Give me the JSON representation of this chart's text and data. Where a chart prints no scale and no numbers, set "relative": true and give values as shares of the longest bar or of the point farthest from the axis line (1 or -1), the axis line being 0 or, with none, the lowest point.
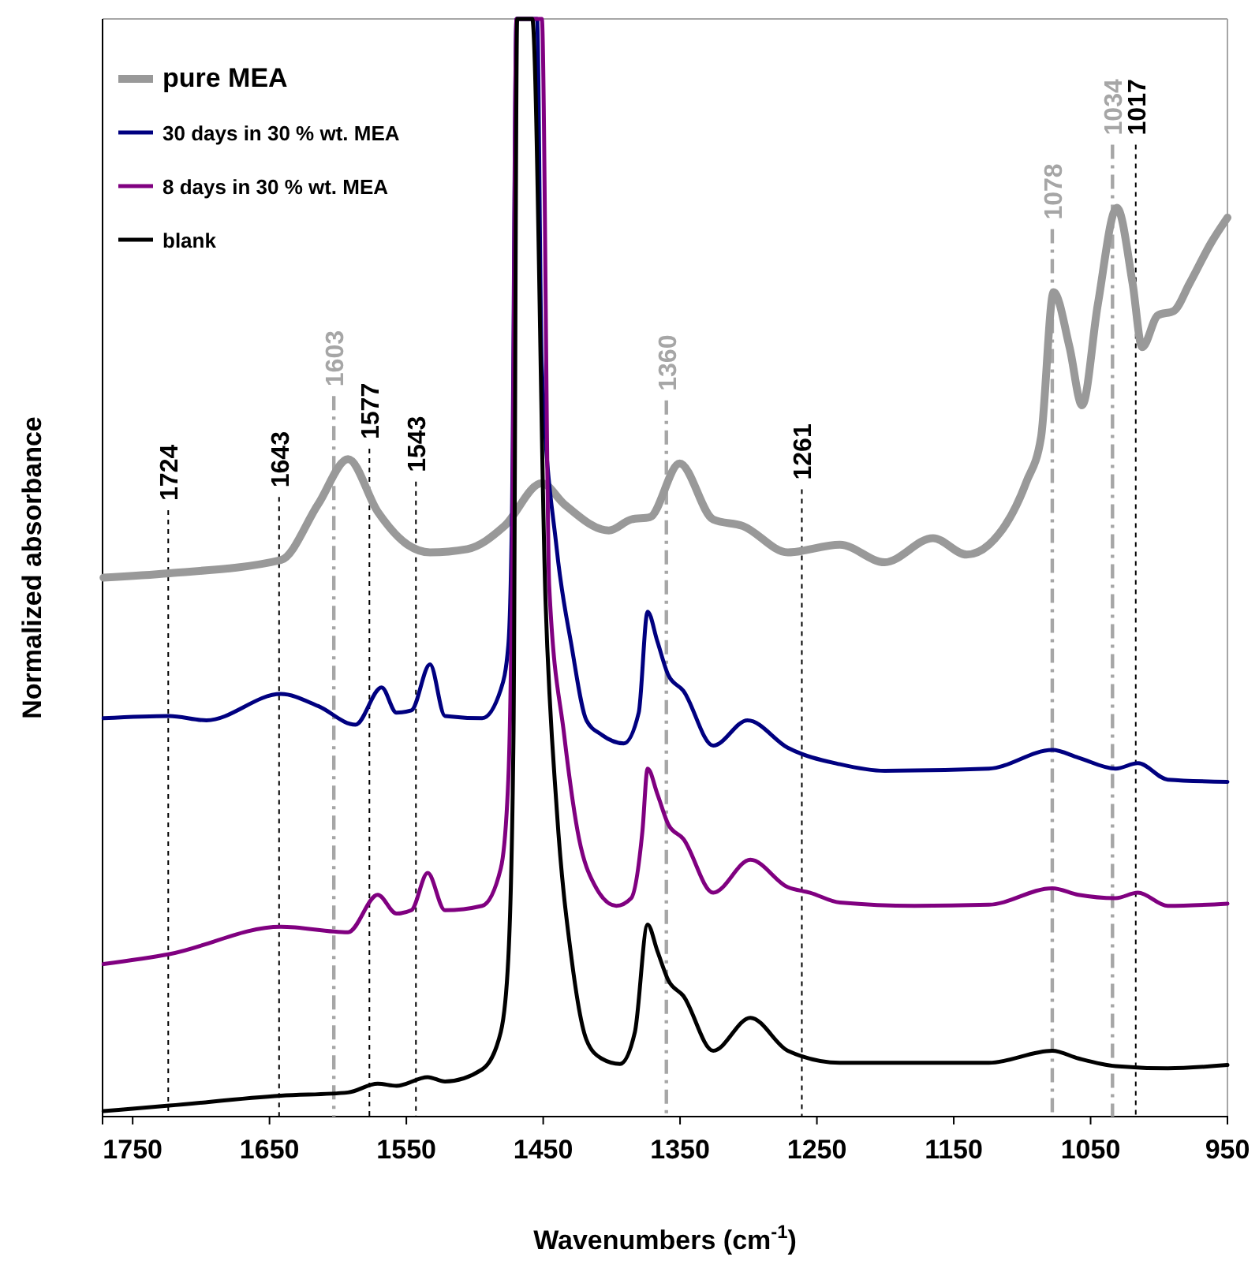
{
  "chart_data": {
    "type": "line",
    "xlabel": "Wavenumbers (cm$^{-1}$)",
    "ylabel": "Normalized absorbance",
    "relative": true,
    "xlim": [
      1772,
      950
    ],
    "xticks": [
      1750,
      1650,
      1550,
      1450,
      1350,
      1250,
      1150,
      1050,
      950
    ],
    "legend": "top left",
    "grid": false,
    "line_style": "solid",
    "series": [
      {
        "name": "pure MEA",
        "color": "#999999",
        "x": [
          1771.3,
          1723.3,
          1641.7,
          1614.4,
          1592.6,
          1570.9,
          1549.1,
          1532.7,
          1505.5,
          1478.3,
          1451.0,
          1434.7,
          1402.0,
          1385.7,
          1372.1,
          1350.3,
          1325.8,
          1304.0,
          1271.3,
          1233.2,
          1200.5,
          1165.1,
          1140.6,
          1124.3,
          1097.0,
          1086.2,
          1077,
          1065.4,
          1056.2,
          1044.7,
          1030.8,
          1019.3,
          1012.3,
          1000.8,
          989.2,
          977.7,
          961.5,
          950
        ],
        "values": [
          0.491,
          0.495,
          0.507,
          0.558,
          0.599,
          0.551,
          0.521,
          0.514,
          0.517,
          0.538,
          0.577,
          0.558,
          0.534,
          0.544,
          0.546,
          0.595,
          0.544,
          0.538,
          0.514,
          0.521,
          0.505,
          0.527,
          0.512,
          0.521,
          0.578,
          0.619,
          0.751,
          0.701,
          0.648,
          0.74,
          0.828,
          0.759,
          0.701,
          0.73,
          0.734,
          0.759,
          0.797,
          0.819
        ]
      },
      {
        "name": "30 days in 30 % wt. MEA",
        "color": "#000080",
        "x": [
          1771.3,
          1723.3,
          1696.1,
          1641.7,
          1614.4,
          1587.2,
          1568.1,
          1557.2,
          1546.3,
          1532.7,
          1521.8,
          1494.6,
          1481.0,
          1475.5,
          1472.8,
          1469.5,
          1454.5,
          1451.1,
          1440.1,
          1429.3,
          1418.4,
          1407.5,
          1391.1,
          1380.2,
          1373.7,
          1366.6,
          1358.5,
          1347.6,
          1325.8,
          1300.7,
          1271.3,
          1233.2,
          1200.5,
          1124.3,
          1078.0,
          1058.9,
          1031.7,
          1015.4,
          993.6,
          950
        ],
        "values": [
          0.363,
          0.365,
          0.361,
          0.385,
          0.374,
          0.357,
          0.391,
          0.368,
          0.37,
          0.412,
          0.365,
          0.363,
          0.389,
          0.429,
          0.551,
          1.0,
          1.0,
          0.687,
          0.517,
          0.429,
          0.361,
          0.348,
          0.34,
          0.368,
          0.46,
          0.433,
          0.402,
          0.388,
          0.338,
          0.361,
          0.336,
          0.321,
          0.315,
          0.317,
          0.334,
          0.327,
          0.317,
          0.322,
          0.307,
          0.305
        ]
      },
      {
        "name": "8 days in 30 % wt. MEA",
        "color": "#800080",
        "x": [
          1771.3,
          1723.3,
          1641.7,
          1592.6,
          1570.9,
          1557.2,
          1546.3,
          1534.4,
          1521.8,
          1494.6,
          1481.0,
          1475.5,
          1472.8,
          1469.5,
          1451.0,
          1445.6,
          1434.7,
          1423.8,
          1412.9,
          1396.6,
          1385.7,
          1377.5,
          1373.7,
          1366.6,
          1358.5,
          1347.6,
          1325.8,
          1298.6,
          1271.3,
          1255.0,
          1233.2,
          1178.7,
          1124.3,
          1078.0,
          1058.9,
          1031.7,
          1015.4,
          993.6,
          950
        ],
        "values": [
          0.139,
          0.148,
          0.173,
          0.168,
          0.202,
          0.185,
          0.188,
          0.222,
          0.188,
          0.192,
          0.226,
          0.307,
          0.483,
          1.0,
          1.0,
          0.483,
          0.348,
          0.253,
          0.212,
          0.192,
          0.199,
          0.26,
          0.317,
          0.294,
          0.266,
          0.253,
          0.204,
          0.234,
          0.209,
          0.204,
          0.195,
          0.192,
          0.193,
          0.208,
          0.202,
          0.199,
          0.204,
          0.192,
          0.194
        ]
      },
      {
        "name": "blank",
        "color": "#000000",
        "x": [
          1771.3,
          1723.3,
          1641.7,
          1592.6,
          1570.9,
          1557.2,
          1534.4,
          1521.8,
          1494.6,
          1481.0,
          1475.5,
          1471.7,
          1469.0,
          1458.0,
          1448.3,
          1440.1,
          1429.3,
          1418.4,
          1407.5,
          1393.9,
          1383.0,
          1373.7,
          1366.6,
          1358.5,
          1347.6,
          1325.8,
          1298.6,
          1271.3,
          1233.2,
          1178.7,
          1124.3,
          1078.0,
          1058.9,
          1031.7,
          993.6,
          950
        ],
        "values": [
          0.005,
          0.01,
          0.019,
          0.022,
          0.03,
          0.028,
          0.036,
          0.032,
          0.043,
          0.077,
          0.144,
          0.348,
          1.0,
          1.0,
          0.47,
          0.28,
          0.144,
          0.07,
          0.053,
          0.048,
          0.077,
          0.175,
          0.151,
          0.124,
          0.11,
          0.06,
          0.09,
          0.06,
          0.049,
          0.049,
          0.049,
          0.06,
          0.053,
          0.046,
          0.044,
          0.047
        ]
      }
    ],
    "ref_lines": [
      {
        "axis": "x",
        "value": 1724,
        "label": "1724",
        "color": "#000000",
        "line_style": "dotted"
      },
      {
        "axis": "x",
        "value": 1643,
        "label": "1643",
        "color": "#000000",
        "line_style": "dotted"
      },
      {
        "axis": "x",
        "value": 1603,
        "label": "1603",
        "color": "#a6a6a6",
        "line_style": "dashed"
      },
      {
        "axis": "x",
        "value": 1577,
        "label": "1577",
        "color": "#000000",
        "line_style": "dotted"
      },
      {
        "axis": "x",
        "value": 1543,
        "label": "1543",
        "color": "#000000",
        "line_style": "dotted"
      },
      {
        "axis": "x",
        "value": 1360,
        "label": "1360",
        "color": "#a6a6a6",
        "line_style": "dashed"
      },
      {
        "axis": "x",
        "value": 1261,
        "label": "1261",
        "color": "#000000",
        "line_style": "dotted"
      },
      {
        "axis": "x",
        "value": 1078,
        "label": "1078",
        "color": "#a6a6a6",
        "line_style": "dashed"
      },
      {
        "axis": "x",
        "value": 1034,
        "label": "1034",
        "color": "#a6a6a6",
        "line_style": "dashed"
      },
      {
        "axis": "x",
        "value": 1017,
        "label": "1017",
        "color": "#000000",
        "line_style": "dotted"
      }
    ]
  }
}
